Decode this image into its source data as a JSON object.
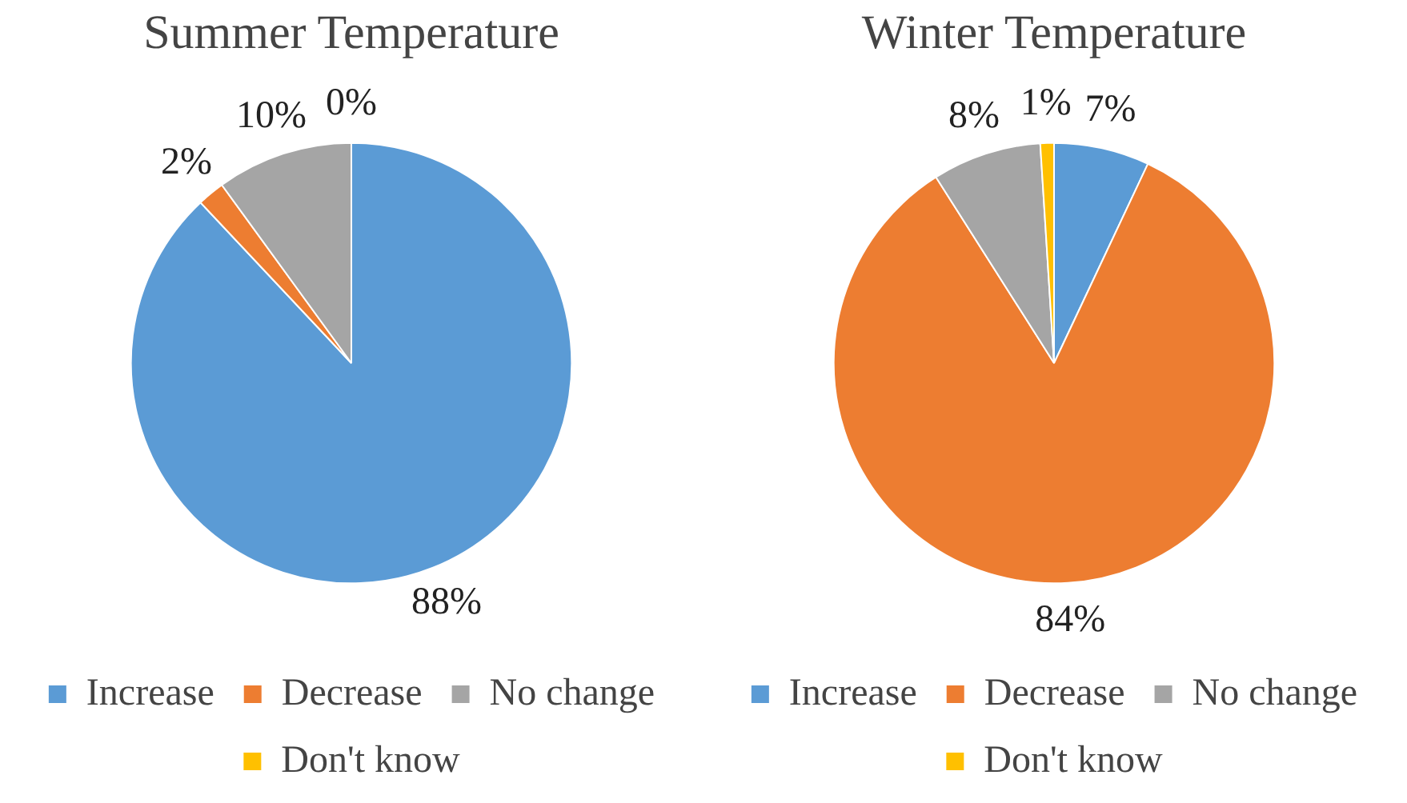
{
  "chart_data": [
    {
      "type": "pie",
      "title": "Summer Temperature",
      "categories": [
        "Increase",
        "Decrease",
        "No change",
        "Don't know"
      ],
      "values": [
        88,
        2,
        10,
        0
      ],
      "value_labels": [
        "88%",
        "2%",
        "10%",
        "0%"
      ],
      "colors": [
        "#5b9bd5",
        "#ed7d31",
        "#a5a5a5",
        "#ffc000"
      ],
      "legend": "bottom"
    },
    {
      "type": "pie",
      "title": "Winter Temperature",
      "categories": [
        "Increase",
        "Decrease",
        "No change",
        "Don't know"
      ],
      "values": [
        7,
        84,
        8,
        1
      ],
      "value_labels": [
        "7%",
        "84%",
        "8%",
        "1%"
      ],
      "colors": [
        "#5b9bd5",
        "#ed7d31",
        "#a5a5a5",
        "#ffc000"
      ],
      "legend": "bottom"
    }
  ]
}
